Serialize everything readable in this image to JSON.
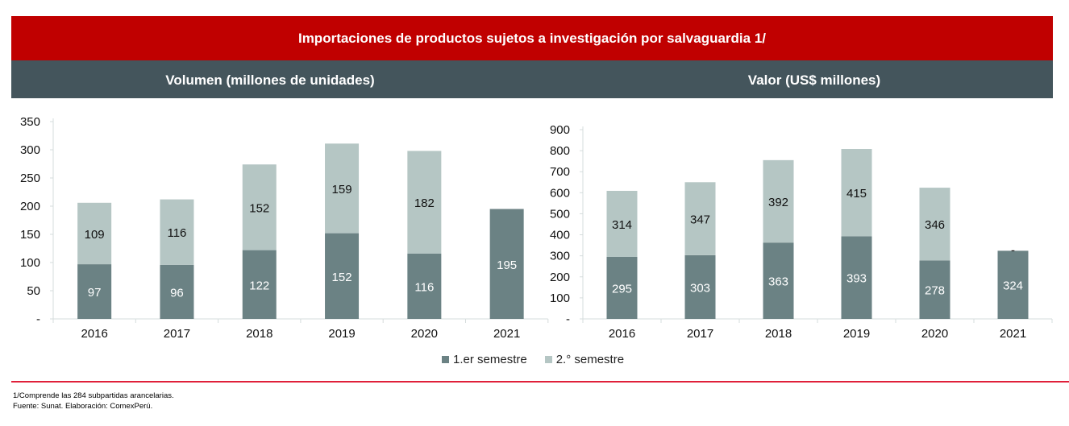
{
  "header": {
    "title": "Importaciones de productos sujetos a investigación por salvaguardia 1/"
  },
  "colors": {
    "first": "#6b8284",
    "second": "#b5c6c4",
    "title_band": "#c00000",
    "sub_band": "#44555c"
  },
  "chart_data": [
    {
      "type": "bar",
      "stacked": true,
      "title": "Volumen (millones de unidades)",
      "categories": [
        "2016",
        "2017",
        "2018",
        "2019",
        "2020",
        "2021"
      ],
      "series": [
        {
          "name": "1.er semestre",
          "values": [
            97,
            96,
            122,
            152,
            116,
            195
          ],
          "labels": [
            "97",
            "96",
            "122",
            "152",
            "116",
            "195"
          ]
        },
        {
          "name": "2.° semestre",
          "values": [
            109,
            116,
            152,
            159,
            182,
            0
          ],
          "labels": [
            "109",
            "116",
            "152",
            "159",
            "182",
            ""
          ]
        }
      ],
      "ylim": [
        0,
        350
      ],
      "yticks": [
        "-",
        "50",
        "100",
        "150",
        "200",
        "250",
        "300",
        "350"
      ],
      "grid": false
    },
    {
      "type": "bar",
      "stacked": true,
      "title": "Valor (US$ millones)",
      "categories": [
        "2016",
        "2017",
        "2018",
        "2019",
        "2020",
        "2021"
      ],
      "series": [
        {
          "name": "1.er semestre",
          "values": [
            295,
            303,
            363,
            393,
            278,
            324
          ],
          "labels": [
            "295",
            "303",
            "363",
            "393",
            "278",
            "324"
          ]
        },
        {
          "name": "2.° semestre",
          "values": [
            314,
            347,
            392,
            415,
            346,
            0
          ],
          "labels": [
            "314",
            "347",
            "392",
            "415",
            "346",
            "-"
          ]
        }
      ],
      "ylim": [
        0,
        900
      ],
      "yticks": [
        "-",
        "100",
        "200",
        "300",
        "400",
        "500",
        "600",
        "700",
        "800",
        "900"
      ],
      "grid": false
    }
  ],
  "legend": {
    "first": "1.er semestre",
    "second": "2.° semestre",
    "position": "bottom"
  },
  "footnotes": {
    "note": "1/Comprende  las 284 subpartidas  arancelarias.",
    "source": "Fuente:  Sunat. Elaboración:  ComexPerú."
  }
}
